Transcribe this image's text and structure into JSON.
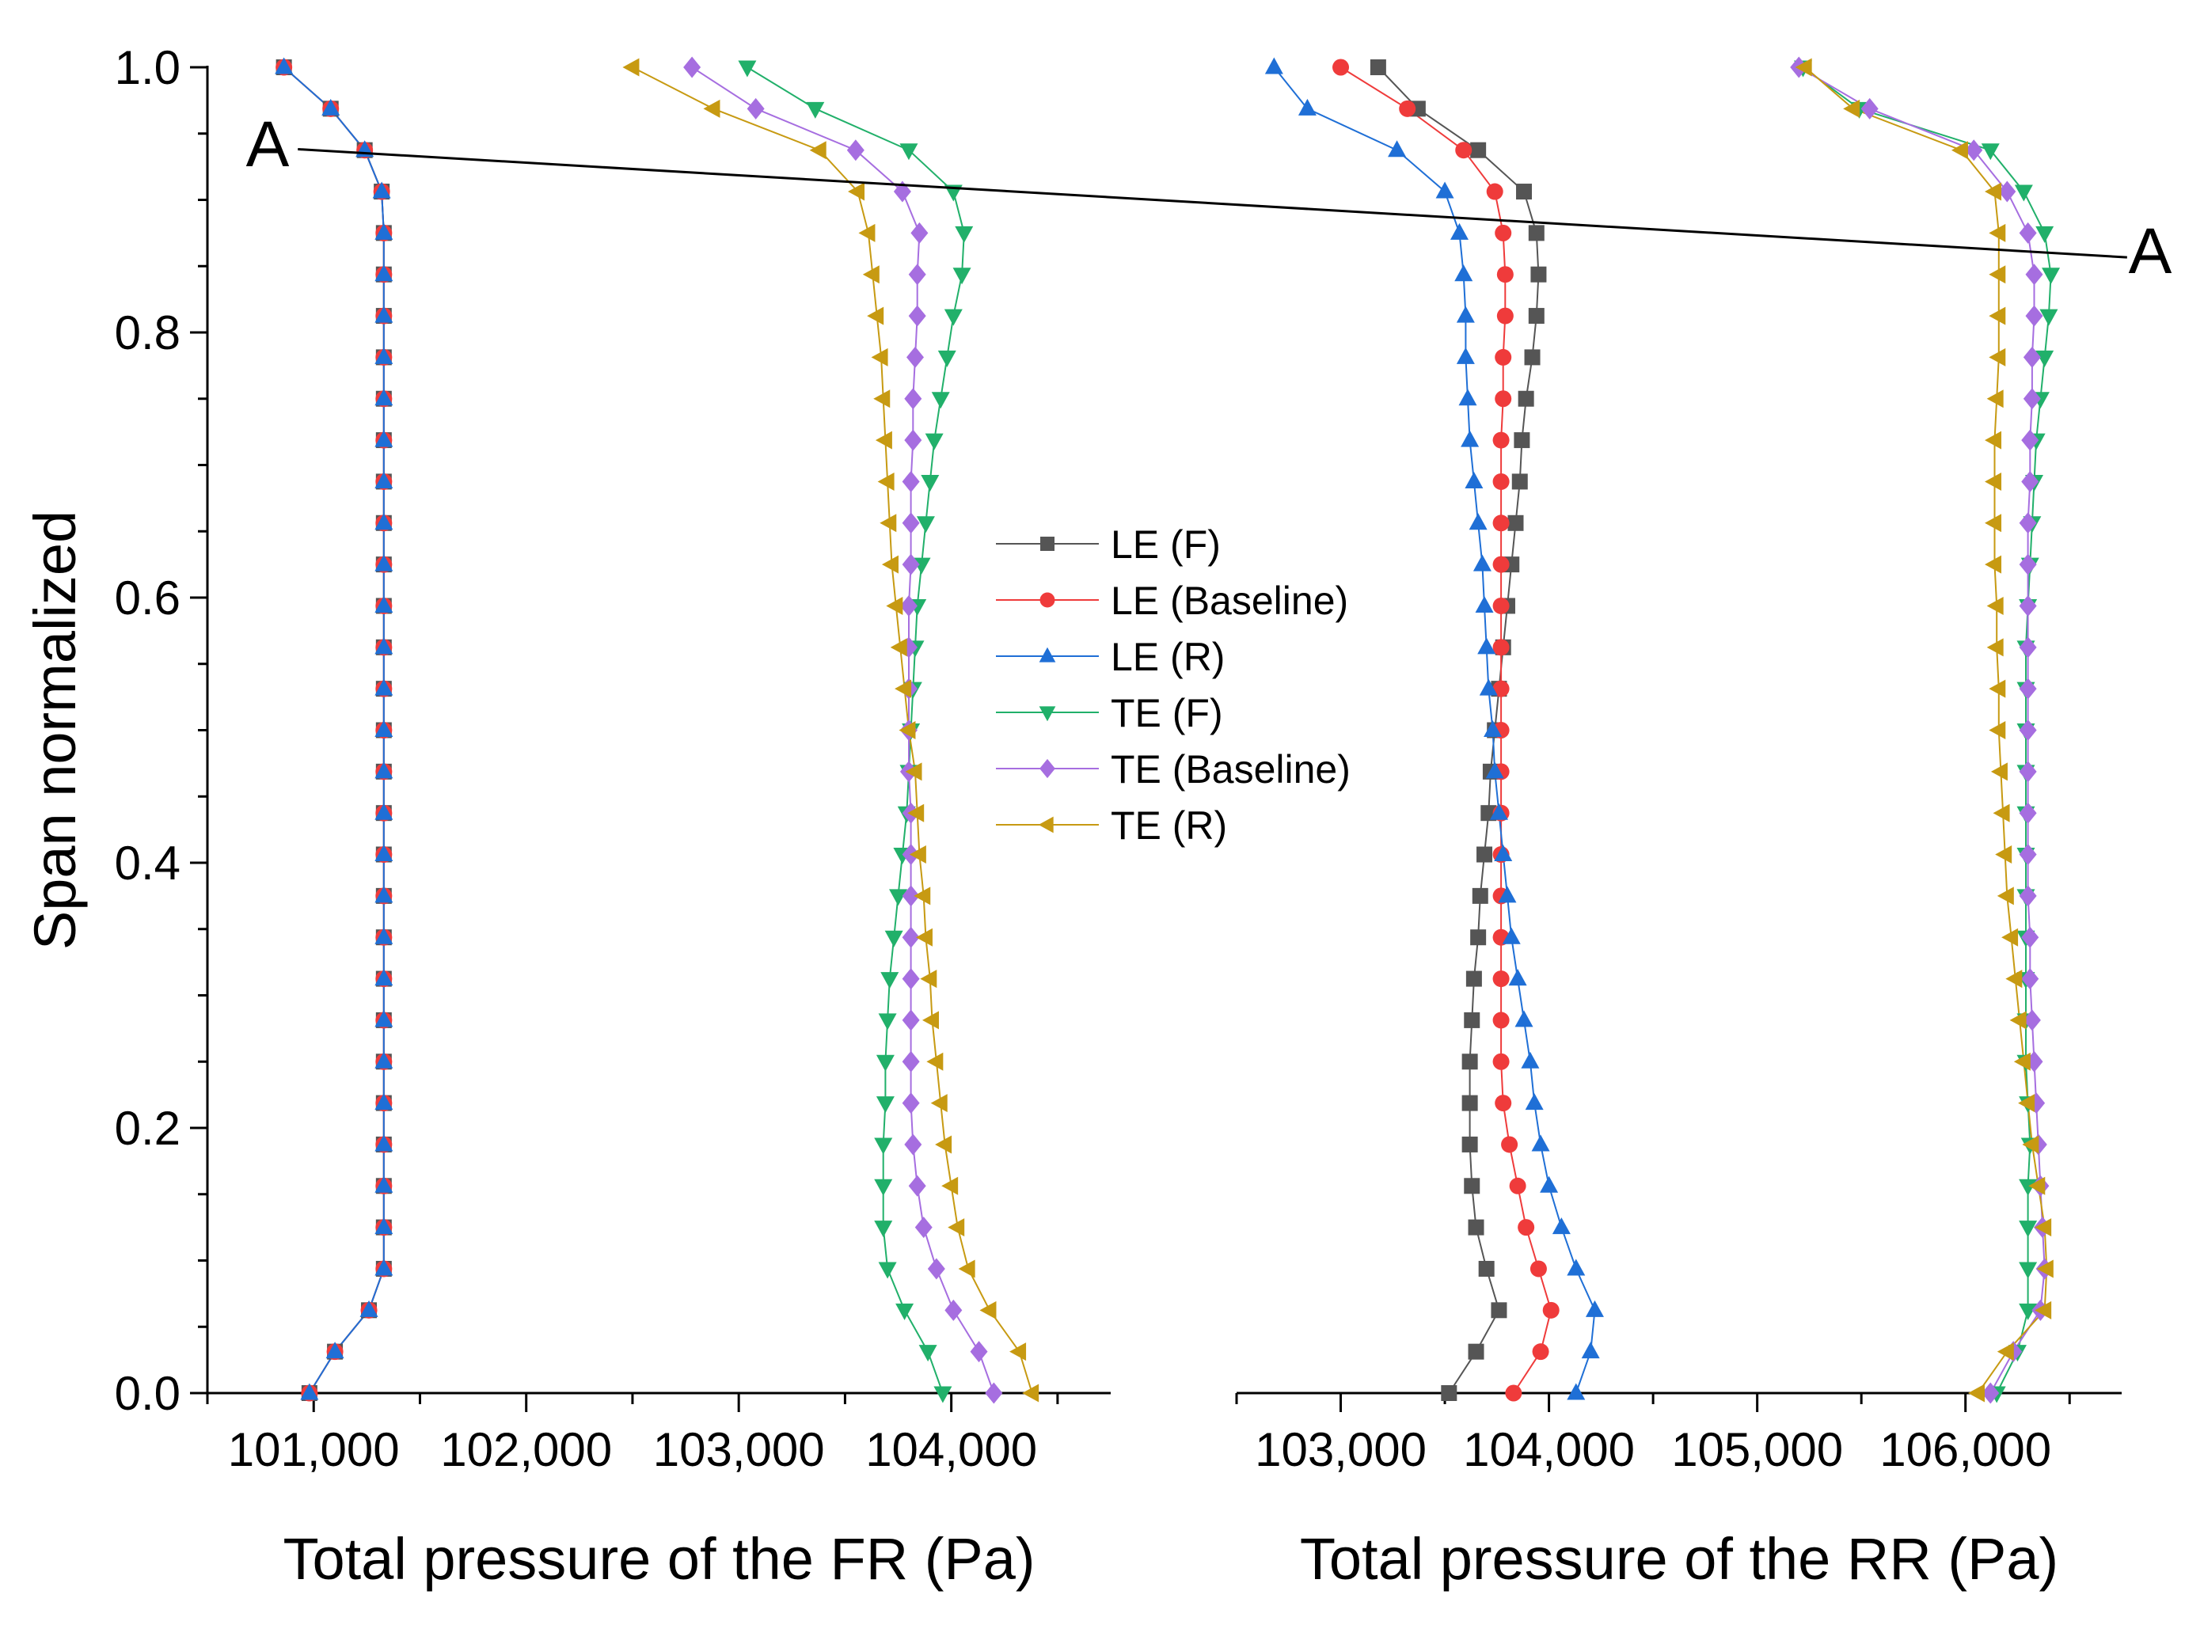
{
  "chart_data": {
    "type": "scatter",
    "ylabel": "Span normalized",
    "ylim": [
      0,
      1.0
    ],
    "y_ticks": [
      "0.0",
      "0.2",
      "0.4",
      "0.6",
      "0.8",
      "1.0"
    ],
    "legend_position": "center",
    "panels": [
      {
        "id": "fr",
        "xlabel": "Total pressure of the FR (Pa)",
        "xlim": [
          100500,
          104750
        ],
        "x_ticks": [
          {
            "value": 101000,
            "label": "101,000"
          },
          {
            "value": 102000,
            "label": "102,000"
          },
          {
            "value": 103000,
            "label": "103,000"
          },
          {
            "value": 104000,
            "label": "104,000"
          }
        ]
      },
      {
        "id": "rr",
        "xlabel": "Total pressure of the RR (Pa)",
        "xlim": [
          102500,
          106750
        ],
        "x_ticks": [
          {
            "value": 103000,
            "label": "103,000"
          },
          {
            "value": 104000,
            "label": "104,000"
          },
          {
            "value": 105000,
            "label": "105,000"
          },
          {
            "value": 106000,
            "label": "106,000"
          }
        ]
      }
    ],
    "annotation": {
      "label_left": "A",
      "label_right": "A",
      "line_from": {
        "panel": "fr",
        "x": 101000,
        "y": 0.94
      },
      "line_to": {
        "panel": "rr",
        "x": 106700,
        "y": 0.865
      }
    },
    "series": [
      {
        "name": "LE (F)",
        "panel": "fr",
        "color": "#555555",
        "marker": "square",
        "x": [
          100980,
          101100,
          101260,
          101330,
          101330,
          101330,
          101330,
          101330,
          101330,
          101330,
          101330,
          101330,
          101330,
          101330,
          101330,
          101330,
          101330,
          101330,
          101330,
          101330,
          101330,
          101330,
          101330,
          101330,
          101330,
          101330,
          101330,
          101330,
          101330,
          101320,
          101240,
          101080,
          100860
        ],
        "y": [
          0.0,
          0.03125,
          0.0625,
          0.09375,
          0.125,
          0.15625,
          0.1875,
          0.21875,
          0.25,
          0.28125,
          0.3125,
          0.34375,
          0.375,
          0.40625,
          0.4375,
          0.46875,
          0.5,
          0.53125,
          0.5625,
          0.59375,
          0.625,
          0.65625,
          0.6875,
          0.71875,
          0.75,
          0.78125,
          0.8125,
          0.84375,
          0.875,
          0.90625,
          0.9375,
          0.96875,
          1.0
        ]
      },
      {
        "name": "LE (F)",
        "panel": "rr",
        "color": "#555555",
        "marker": "square",
        "x": [
          103520,
          103650,
          103760,
          103700,
          103650,
          103630,
          103620,
          103620,
          103620,
          103630,
          103640,
          103660,
          103670,
          103690,
          103710,
          103720,
          103740,
          103760,
          103780,
          103800,
          103820,
          103840,
          103860,
          103870,
          103890,
          103920,
          103940,
          103950,
          103940,
          103880,
          103660,
          103370,
          103180
        ],
        "y": [
          0.0,
          0.03125,
          0.0625,
          0.09375,
          0.125,
          0.15625,
          0.1875,
          0.21875,
          0.25,
          0.28125,
          0.3125,
          0.34375,
          0.375,
          0.40625,
          0.4375,
          0.46875,
          0.5,
          0.53125,
          0.5625,
          0.59375,
          0.625,
          0.65625,
          0.6875,
          0.71875,
          0.75,
          0.78125,
          0.8125,
          0.84375,
          0.875,
          0.90625,
          0.9375,
          0.96875,
          1.0
        ]
      },
      {
        "name": "LE (Baseline)",
        "panel": "fr",
        "color": "#ef3b3b",
        "marker": "circle",
        "x": [
          100980,
          101100,
          101260,
          101330,
          101330,
          101330,
          101330,
          101330,
          101330,
          101330,
          101330,
          101330,
          101330,
          101330,
          101330,
          101330,
          101330,
          101330,
          101330,
          101330,
          101330,
          101330,
          101330,
          101330,
          101330,
          101330,
          101330,
          101330,
          101330,
          101320,
          101240,
          101080,
          100860
        ],
        "y": [
          0.0,
          0.03125,
          0.0625,
          0.09375,
          0.125,
          0.15625,
          0.1875,
          0.21875,
          0.25,
          0.28125,
          0.3125,
          0.34375,
          0.375,
          0.40625,
          0.4375,
          0.46875,
          0.5,
          0.53125,
          0.5625,
          0.59375,
          0.625,
          0.65625,
          0.6875,
          0.71875,
          0.75,
          0.78125,
          0.8125,
          0.84375,
          0.875,
          0.90625,
          0.9375,
          0.96875,
          1.0
        ]
      },
      {
        "name": "LE (Baseline)",
        "panel": "rr",
        "color": "#ef3b3b",
        "marker": "circle",
        "x": [
          103830,
          103960,
          104010,
          103950,
          103890,
          103850,
          103810,
          103780,
          103770,
          103770,
          103770,
          103770,
          103770,
          103770,
          103770,
          103770,
          103770,
          103770,
          103770,
          103770,
          103770,
          103770,
          103770,
          103770,
          103780,
          103780,
          103790,
          103790,
          103780,
          103740,
          103590,
          103320,
          103000
        ],
        "y": [
          0.0,
          0.03125,
          0.0625,
          0.09375,
          0.125,
          0.15625,
          0.1875,
          0.21875,
          0.25,
          0.28125,
          0.3125,
          0.34375,
          0.375,
          0.40625,
          0.4375,
          0.46875,
          0.5,
          0.53125,
          0.5625,
          0.59375,
          0.625,
          0.65625,
          0.6875,
          0.71875,
          0.75,
          0.78125,
          0.8125,
          0.84375,
          0.875,
          0.90625,
          0.9375,
          0.96875,
          1.0
        ]
      },
      {
        "name": "LE (R)",
        "panel": "fr",
        "color": "#1f6fd6",
        "marker": "triangle-up",
        "x": [
          100980,
          101100,
          101260,
          101330,
          101330,
          101330,
          101330,
          101330,
          101330,
          101330,
          101330,
          101330,
          101330,
          101330,
          101330,
          101330,
          101330,
          101330,
          101330,
          101330,
          101330,
          101330,
          101330,
          101330,
          101330,
          101330,
          101330,
          101330,
          101330,
          101320,
          101240,
          101080,
          100860
        ],
        "y": [
          0.0,
          0.03125,
          0.0625,
          0.09375,
          0.125,
          0.15625,
          0.1875,
          0.21875,
          0.25,
          0.28125,
          0.3125,
          0.34375,
          0.375,
          0.40625,
          0.4375,
          0.46875,
          0.5,
          0.53125,
          0.5625,
          0.59375,
          0.625,
          0.65625,
          0.6875,
          0.71875,
          0.75,
          0.78125,
          0.8125,
          0.84375,
          0.875,
          0.90625,
          0.9375,
          0.96875,
          1.0
        ]
      },
      {
        "name": "LE (R)",
        "panel": "rr",
        "color": "#1f6fd6",
        "marker": "triangle-up",
        "x": [
          104130,
          104200,
          104220,
          104130,
          104060,
          104000,
          103960,
          103930,
          103910,
          103880,
          103850,
          103820,
          103800,
          103780,
          103760,
          103740,
          103730,
          103710,
          103700,
          103690,
          103680,
          103660,
          103640,
          103620,
          103610,
          103600,
          103600,
          103590,
          103570,
          103500,
          103270,
          102840,
          102680
        ],
        "y": [
          0.0,
          0.03125,
          0.0625,
          0.09375,
          0.125,
          0.15625,
          0.1875,
          0.21875,
          0.25,
          0.28125,
          0.3125,
          0.34375,
          0.375,
          0.40625,
          0.4375,
          0.46875,
          0.5,
          0.53125,
          0.5625,
          0.59375,
          0.625,
          0.65625,
          0.6875,
          0.71875,
          0.75,
          0.78125,
          0.8125,
          0.84375,
          0.875,
          0.90625,
          0.9375,
          0.96875,
          1.0
        ]
      },
      {
        "name": "TE (F)",
        "panel": "fr",
        "color": "#21b06a",
        "marker": "triangle-down",
        "x": [
          103960,
          103890,
          103780,
          103700,
          103680,
          103680,
          103680,
          103690,
          103690,
          103700,
          103710,
          103730,
          103750,
          103770,
          103790,
          103800,
          103810,
          103820,
          103830,
          103840,
          103860,
          103880,
          103900,
          103920,
          103950,
          103980,
          104010,
          104050,
          104060,
          104010,
          103800,
          103360,
          103040
        ],
        "y": [
          0.0,
          0.03125,
          0.0625,
          0.09375,
          0.125,
          0.15625,
          0.1875,
          0.21875,
          0.25,
          0.28125,
          0.3125,
          0.34375,
          0.375,
          0.40625,
          0.4375,
          0.46875,
          0.5,
          0.53125,
          0.5625,
          0.59375,
          0.625,
          0.65625,
          0.6875,
          0.71875,
          0.75,
          0.78125,
          0.8125,
          0.84375,
          0.875,
          0.90625,
          0.9375,
          0.96875,
          1.0
        ]
      },
      {
        "name": "TE (F)",
        "panel": "rr",
        "color": "#21b06a",
        "marker": "triangle-down",
        "x": [
          106150,
          106250,
          106300,
          106300,
          106300,
          106300,
          106310,
          106300,
          106290,
          106290,
          106290,
          106290,
          106290,
          106290,
          106290,
          106290,
          106290,
          106290,
          106290,
          106300,
          106310,
          106320,
          106330,
          106340,
          106360,
          106380,
          106400,
          106410,
          106380,
          106280,
          106120,
          105490,
          105220
        ],
        "y": [
          0.0,
          0.03125,
          0.0625,
          0.09375,
          0.125,
          0.15625,
          0.1875,
          0.21875,
          0.25,
          0.28125,
          0.3125,
          0.34375,
          0.375,
          0.40625,
          0.4375,
          0.46875,
          0.5,
          0.53125,
          0.5625,
          0.59375,
          0.625,
          0.65625,
          0.6875,
          0.71875,
          0.75,
          0.78125,
          0.8125,
          0.84375,
          0.875,
          0.90625,
          0.9375,
          0.96875,
          1.0
        ]
      },
      {
        "name": "TE (Baseline)",
        "panel": "fr",
        "color": "#a66ee0",
        "marker": "diamond",
        "x": [
          104200,
          104130,
          104010,
          103930,
          103870,
          103840,
          103820,
          103810,
          103810,
          103810,
          103810,
          103810,
          103810,
          103810,
          103810,
          103800,
          103800,
          103800,
          103800,
          103800,
          103810,
          103810,
          103810,
          103820,
          103820,
          103830,
          103840,
          103840,
          103850,
          103770,
          103550,
          103080,
          102780
        ],
        "y": [
          0.0,
          0.03125,
          0.0625,
          0.09375,
          0.125,
          0.15625,
          0.1875,
          0.21875,
          0.25,
          0.28125,
          0.3125,
          0.34375,
          0.375,
          0.40625,
          0.4375,
          0.46875,
          0.5,
          0.53125,
          0.5625,
          0.59375,
          0.625,
          0.65625,
          0.6875,
          0.71875,
          0.75,
          0.78125,
          0.8125,
          0.84375,
          0.875,
          0.90625,
          0.9375,
          0.96875,
          1.0
        ]
      },
      {
        "name": "TE (Baseline)",
        "panel": "rr",
        "color": "#a66ee0",
        "marker": "diamond",
        "x": [
          106120,
          106230,
          106360,
          106380,
          106370,
          106360,
          106350,
          106340,
          106330,
          106320,
          106310,
          106310,
          106300,
          106300,
          106300,
          106300,
          106300,
          106300,
          106300,
          106300,
          106300,
          106300,
          106310,
          106310,
          106320,
          106320,
          106330,
          106330,
          106300,
          106200,
          106040,
          105540,
          105200
        ],
        "y": [
          0.0,
          0.03125,
          0.0625,
          0.09375,
          0.125,
          0.15625,
          0.1875,
          0.21875,
          0.25,
          0.28125,
          0.3125,
          0.34375,
          0.375,
          0.40625,
          0.4375,
          0.46875,
          0.5,
          0.53125,
          0.5625,
          0.59375,
          0.625,
          0.65625,
          0.6875,
          0.71875,
          0.75,
          0.78125,
          0.8125,
          0.84375,
          0.875,
          0.90625,
          0.9375,
          0.96875,
          1.0
        ]
      },
      {
        "name": "TE (R)",
        "panel": "fr",
        "color": "#c79a12",
        "marker": "triangle-left",
        "x": [
          104380,
          104320,
          104180,
          104080,
          104030,
          104000,
          103970,
          103950,
          103930,
          103910,
          103900,
          103880,
          103870,
          103850,
          103840,
          103830,
          103800,
          103780,
          103760,
          103740,
          103720,
          103710,
          103700,
          103690,
          103680,
          103670,
          103650,
          103630,
          103610,
          103560,
          103380,
          102880,
          102500
        ],
        "y": [
          0.0,
          0.03125,
          0.0625,
          0.09375,
          0.125,
          0.15625,
          0.1875,
          0.21875,
          0.25,
          0.28125,
          0.3125,
          0.34375,
          0.375,
          0.40625,
          0.4375,
          0.46875,
          0.5,
          0.53125,
          0.5625,
          0.59375,
          0.625,
          0.65625,
          0.6875,
          0.71875,
          0.75,
          0.78125,
          0.8125,
          0.84375,
          0.875,
          0.90625,
          0.9375,
          0.96875,
          1.0
        ]
      },
      {
        "name": "TE (R)",
        "panel": "rr",
        "color": "#c79a12",
        "marker": "triangle-left",
        "x": [
          106060,
          106200,
          106380,
          106390,
          106380,
          106350,
          106320,
          106300,
          106280,
          106260,
          106240,
          106220,
          106200,
          106190,
          106180,
          106170,
          106160,
          106160,
          106150,
          106150,
          106140,
          106140,
          106140,
          106140,
          106150,
          106160,
          106160,
          106160,
          106160,
          106140,
          105980,
          105460,
          105230
        ],
        "y": [
          0.0,
          0.03125,
          0.0625,
          0.09375,
          0.125,
          0.15625,
          0.1875,
          0.21875,
          0.25,
          0.28125,
          0.3125,
          0.34375,
          0.375,
          0.40625,
          0.4375,
          0.46875,
          0.5,
          0.53125,
          0.5625,
          0.59375,
          0.625,
          0.65625,
          0.6875,
          0.71875,
          0.75,
          0.78125,
          0.8125,
          0.84375,
          0.875,
          0.90625,
          0.9375,
          0.96875,
          1.0
        ]
      }
    ],
    "legend": [
      {
        "label": "LE (F)",
        "color": "#555555",
        "marker": "square"
      },
      {
        "label": "LE (Baseline)",
        "color": "#ef3b3b",
        "marker": "circle"
      },
      {
        "label": "LE (R)",
        "color": "#1f6fd6",
        "marker": "triangle-up"
      },
      {
        "label": "TE (F)",
        "color": "#21b06a",
        "marker": "triangle-down"
      },
      {
        "label": "TE (Baseline)",
        "color": "#a66ee0",
        "marker": "diamond"
      },
      {
        "label": "TE (R)",
        "color": "#c79a12",
        "marker": "triangle-left"
      }
    ]
  }
}
